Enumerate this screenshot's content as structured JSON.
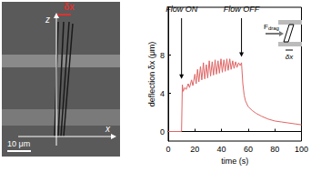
{
  "chart_data": {
    "type": "line",
    "xlabel": "time (s)",
    "ylabel": "deflection δx (μm)",
    "x": [
      0,
      10,
      10.6,
      11.2,
      12.5,
      13.5,
      15,
      16,
      17.5,
      18.5,
      20,
      21,
      22,
      23,
      24.2,
      25.2,
      26.4,
      27.4,
      28.6,
      29.6,
      30.8,
      31.8,
      33,
      34,
      35.2,
      36.2,
      37.4,
      38.4,
      39.6,
      40.6,
      41.8,
      42.8,
      44,
      45,
      46.2,
      47.2,
      48.4,
      49.4,
      50.6,
      51.6,
      52.8,
      54,
      55,
      56,
      57,
      58,
      60,
      63,
      66,
      70,
      75,
      80,
      85,
      90,
      95,
      100
    ],
    "values": [
      0,
      0,
      4.9,
      4.2,
      4.6,
      4.4,
      5.0,
      4.6,
      5.4,
      4.8,
      6.0,
      5.0,
      6.5,
      5.2,
      6.8,
      5.4,
      7.2,
      5.5,
      7.0,
      5.6,
      7.4,
      5.8,
      7.3,
      5.9,
      7.5,
      6.0,
      7.4,
      6.1,
      7.6,
      6.2,
      7.5,
      6.3,
      7.6,
      6.4,
      7.6,
      6.5,
      7.4,
      6.6,
      7.3,
      6.7,
      7.2,
      6.9,
      7.2,
      5.0,
      3.8,
      3.2,
      2.6,
      2.2,
      1.9,
      1.6,
      1.3,
      1.1,
      1.0,
      0.9,
      0.8,
      0.7
    ],
    "color": "#e06666",
    "xlim": [
      0,
      100
    ],
    "xticks": [
      0,
      20,
      40,
      60,
      80,
      100
    ],
    "ylim": [
      -1,
      13
    ],
    "yticks": [
      0,
      4,
      8
    ],
    "grid": false,
    "annotations": [
      {
        "text": "Flow ON",
        "x": 10,
        "y": 5.5
      },
      {
        "text": "Flow OFF",
        "x": 55,
        "y": 7.8
      }
    ],
    "inset": {
      "force": "F",
      "force_subscript": "drag",
      "deflection": "δx"
    }
  },
  "image_panel": {
    "labels": {
      "z": "z",
      "x": "x",
      "deflection": "δx",
      "scale_bar": "10 μm"
    }
  }
}
